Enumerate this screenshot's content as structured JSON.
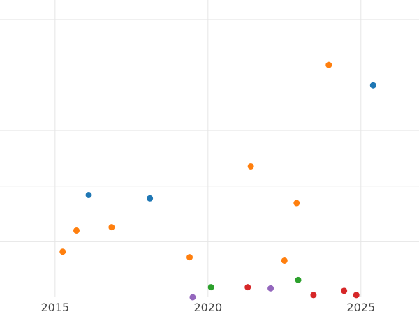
{
  "chart_data": {
    "type": "scatter",
    "title": "",
    "xlabel": "",
    "ylabel": "",
    "xlim": [
      2013.2,
      2026.9
    ],
    "ylim": [
      0,
      107
    ],
    "x_ticks": [
      2015,
      2020,
      2025
    ],
    "x_tick_labels": [
      "2015",
      "2020",
      "2025"
    ],
    "y_gridlines": [
      20,
      40,
      60,
      80,
      100
    ],
    "grid": true,
    "legend": "none",
    "series": [
      {
        "color": "#1f77b4",
        "points": [
          {
            "x": 2016.1,
            "y": 36.8
          },
          {
            "x": 2018.1,
            "y": 35.6
          },
          {
            "x": 2025.4,
            "y": 76.3
          }
        ]
      },
      {
        "color": "#ff7f0e",
        "points": [
          {
            "x": 2015.25,
            "y": 16.4
          },
          {
            "x": 2015.7,
            "y": 24.0
          },
          {
            "x": 2016.85,
            "y": 25.2
          },
          {
            "x": 2019.4,
            "y": 14.4
          },
          {
            "x": 2021.4,
            "y": 47.1
          },
          {
            "x": 2022.5,
            "y": 13.2
          },
          {
            "x": 2022.9,
            "y": 33.9
          },
          {
            "x": 2023.95,
            "y": 83.6
          }
        ]
      },
      {
        "color": "#2ca02c",
        "points": [
          {
            "x": 2020.1,
            "y": 3.6
          },
          {
            "x": 2022.95,
            "y": 6.2
          }
        ]
      },
      {
        "color": "#d62728",
        "points": [
          {
            "x": 2021.3,
            "y": 3.6
          },
          {
            "x": 2023.45,
            "y": 0.8
          },
          {
            "x": 2024.45,
            "y": 2.3
          },
          {
            "x": 2024.85,
            "y": 0.8
          }
        ]
      },
      {
        "color": "#9467bd",
        "points": [
          {
            "x": 2019.5,
            "y": 0.0
          },
          {
            "x": 2022.05,
            "y": 3.2
          }
        ]
      }
    ]
  }
}
